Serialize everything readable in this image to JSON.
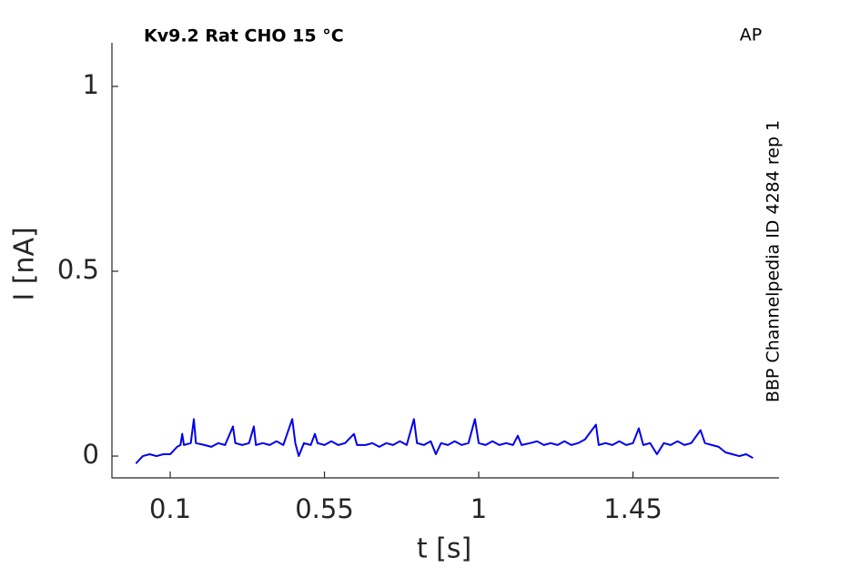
{
  "chart_data": {
    "type": "line",
    "title": "Kv9.2  Rat  CHO  15 °C",
    "corner_label": "AP",
    "side_note": "BBP Channelpedia ID 4284 rep 1",
    "x_label": "t [s]",
    "y_label": "I [nA]",
    "xlim": [
      -0.07,
      1.876
    ],
    "ylim": [
      -0.059,
      1.118
    ],
    "xticks": [
      0.1,
      0.55,
      1,
      1.45
    ],
    "yticks": [
      0,
      0.5,
      1
    ],
    "grid": false,
    "series": [
      {
        "color": "#0000ee",
        "x": [
          0,
          0.02,
          0.04,
          0.06,
          0.08,
          0.1,
          0.12,
          0.13,
          0.135,
          0.14,
          0.16,
          0.169,
          0.175,
          0.2,
          0.22,
          0.24,
          0.26,
          0.283,
          0.29,
          0.31,
          0.33,
          0.344,
          0.35,
          0.37,
          0.39,
          0.41,
          0.43,
          0.456,
          0.465,
          0.475,
          0.49,
          0.51,
          0.522,
          0.53,
          0.55,
          0.57,
          0.59,
          0.61,
          0.636,
          0.645,
          0.67,
          0.69,
          0.71,
          0.73,
          0.75,
          0.77,
          0.79,
          0.811,
          0.82,
          0.84,
          0.86,
          0.875,
          0.89,
          0.91,
          0.93,
          0.95,
          0.97,
          0.989,
          1.0,
          1.02,
          1.04,
          1.06,
          1.08,
          1.1,
          1.114,
          1.125,
          1.15,
          1.17,
          1.19,
          1.21,
          1.23,
          1.25,
          1.27,
          1.29,
          1.31,
          1.342,
          1.35,
          1.37,
          1.39,
          1.41,
          1.43,
          1.45,
          1.467,
          1.48,
          1.5,
          1.52,
          1.54,
          1.56,
          1.58,
          1.6,
          1.62,
          1.647,
          1.66,
          1.68,
          1.7,
          1.72,
          1.74,
          1.76,
          1.78,
          1.8
        ],
        "values": [
          -0.02,
          0.0,
          0.005,
          0.0,
          0.005,
          0.005,
          0.025,
          0.03,
          0.06,
          0.03,
          0.035,
          0.1,
          0.035,
          0.03,
          0.025,
          0.035,
          0.03,
          0.08,
          0.035,
          0.03,
          0.035,
          0.08,
          0.03,
          0.035,
          0.03,
          0.04,
          0.03,
          0.1,
          0.035,
          0.0,
          0.035,
          0.03,
          0.06,
          0.035,
          0.03,
          0.04,
          0.03,
          0.035,
          0.06,
          0.03,
          0.03,
          0.035,
          0.025,
          0.035,
          0.03,
          0.04,
          0.03,
          0.1,
          0.035,
          0.03,
          0.04,
          0.005,
          0.035,
          0.03,
          0.04,
          0.03,
          0.035,
          0.1,
          0.035,
          0.03,
          0.04,
          0.03,
          0.035,
          0.03,
          0.055,
          0.03,
          0.035,
          0.04,
          0.03,
          0.035,
          0.03,
          0.04,
          0.03,
          0.035,
          0.045,
          0.085,
          0.03,
          0.035,
          0.03,
          0.04,
          0.03,
          0.035,
          0.075,
          0.03,
          0.035,
          0.005,
          0.035,
          0.03,
          0.04,
          0.03,
          0.035,
          0.07,
          0.035,
          0.03,
          0.025,
          0.01,
          0.005,
          0.0,
          0.005,
          -0.005
        ]
      }
    ]
  }
}
